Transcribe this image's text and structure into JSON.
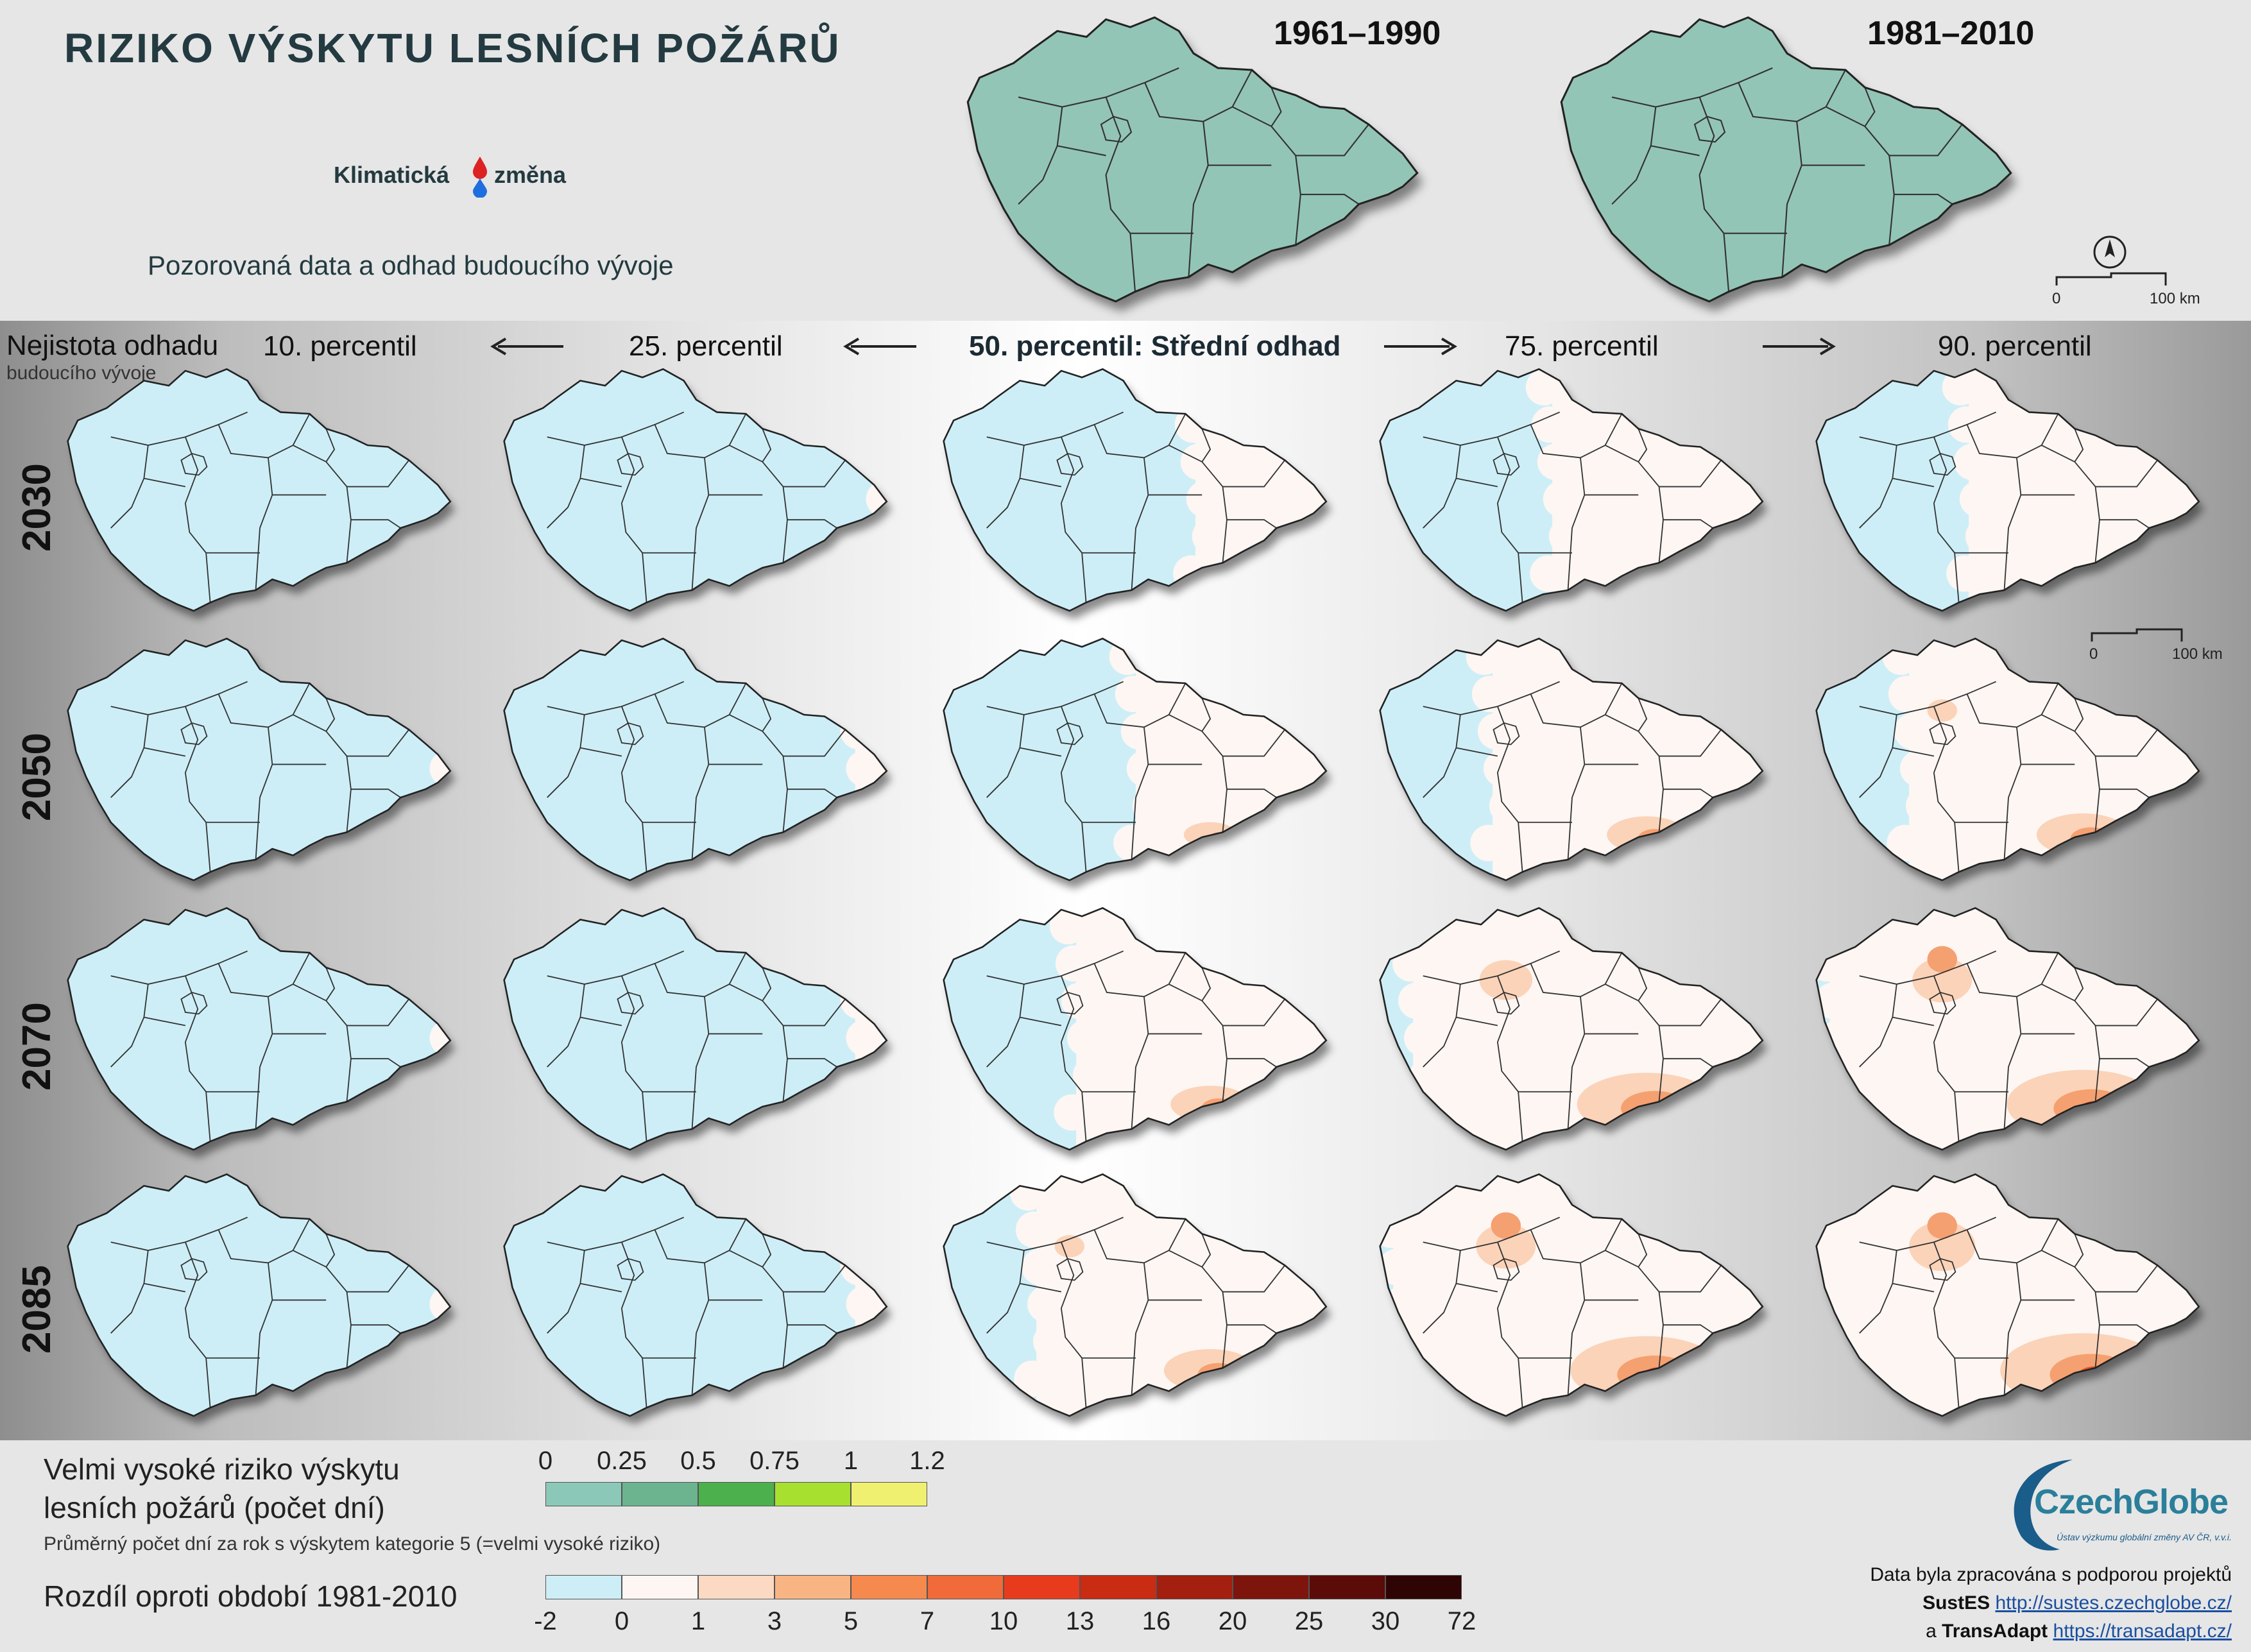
{
  "title": "RIZIKO VÝSKYTU LESNÍCH POŽÁRŮ",
  "logo": {
    "part1": "Klimatická",
    "part2": "změna"
  },
  "subtitle": "Pozorovaná data a odhad budoucího vývoje",
  "observed_periods": [
    "1961–1990",
    "1981–2010"
  ],
  "uncertainty": {
    "label": "Nejistota odhadu",
    "sublabel": "budoucího vývoje"
  },
  "percentiles": [
    "10. percentil",
    "25. percentil",
    "50. percentil: Střední odhad",
    "75. percentil",
    "90. percentil"
  ],
  "years": [
    "2030",
    "2050",
    "2070",
    "2085"
  ],
  "scale": {
    "zero": "0",
    "distance": "100 km"
  },
  "legend_abs": {
    "title_line1": "Velmi vysoké riziko výskytu",
    "title_line2": "lesních požárů (počet dní)",
    "note": "Průměrný počet dní za rok s výskytem kategorie 5 (=velmi vysoké riziko)",
    "ticks": [
      "0",
      "0.25",
      "0.5",
      "0.75",
      "1",
      "1.2"
    ],
    "colors": [
      "#8cc8b8",
      "#6cb38f",
      "#4cb04c",
      "#a8e030",
      "#f0f070"
    ]
  },
  "legend_diff": {
    "title": "Rozdíl oproti období 1981-2010",
    "ticks": [
      "-2",
      "0",
      "1",
      "3",
      "5",
      "7",
      "10",
      "13",
      "16",
      "20",
      "25",
      "30",
      "72"
    ],
    "colors": [
      "#cdeef7",
      "#fdf6f3",
      "#fcd9c2",
      "#f9b484",
      "#f6894e",
      "#f06a3a",
      "#e83b1e",
      "#c92c13",
      "#a31f10",
      "#7e150c",
      "#5b0c08",
      "#2e0504"
    ]
  },
  "map_colors": {
    "observed": "#93c5b6",
    "cool": "#cdeef7",
    "neutral": "#fdf6f3",
    "warm1": "#fbd3b8",
    "warm2": "#f5a070",
    "warm3": "#e8502a"
  },
  "org": {
    "name": "CzechGlobe",
    "tagline": "Ústav výzkumu globální změny AV ČR, v.v.i."
  },
  "credits": {
    "line1": "Data byla zpracována s podporou projektů",
    "p1_name": "SustES",
    "p1_link": "http://sustes.czechglobe.cz/",
    "connector": "a",
    "p2_name": "TransAdapt",
    "p2_link": "https://transadapt.cz/"
  },
  "grid_fill": [
    [
      0.0,
      0.05,
      0.35,
      0.55,
      0.6
    ],
    [
      0.05,
      0.1,
      0.5,
      0.7,
      0.75
    ],
    [
      0.05,
      0.1,
      0.65,
      0.9,
      0.95
    ],
    [
      0.05,
      0.1,
      0.75,
      0.95,
      1.0
    ]
  ],
  "grid_hot": [
    [
      0,
      0,
      0,
      0,
      0
    ],
    [
      0,
      0,
      0.15,
      0.35,
      0.45
    ],
    [
      0,
      0,
      0.35,
      0.8,
      0.9
    ],
    [
      0,
      0,
      0.45,
      0.9,
      1.0
    ]
  ]
}
